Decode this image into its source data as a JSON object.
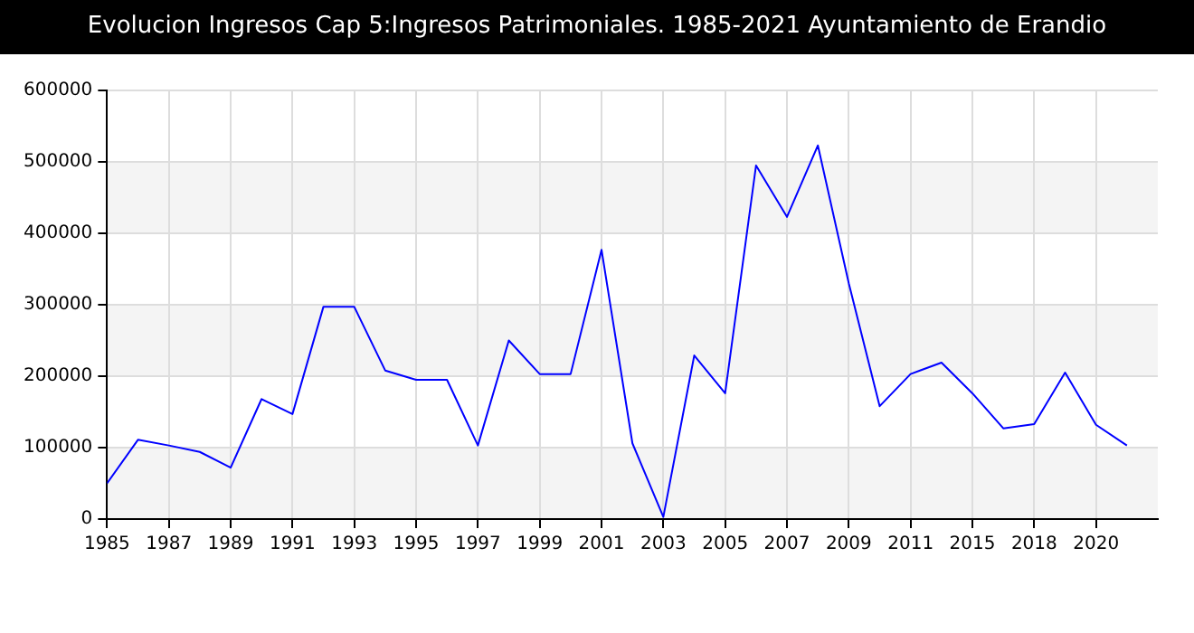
{
  "chart_data": {
    "type": "line",
    "title": "Evolucion Ingresos Cap 5:Ingresos Patrimoniales. 1985-2021 Ayuntamiento de Erandio",
    "categories": [
      "1985",
      null,
      "1987",
      null,
      "1989",
      null,
      "1991",
      null,
      "1993",
      null,
      "1995",
      null,
      "1997",
      null,
      "1999",
      null,
      "2001",
      null,
      "2003",
      null,
      "2005",
      null,
      "2007",
      null,
      "2009",
      null,
      "2011",
      null,
      "2015",
      null,
      "2018",
      null,
      "2020",
      null
    ],
    "series": [
      {
        "color": "#0000ff",
        "values": [
          50000,
          111000,
          103000,
          94000,
          72000,
          168000,
          147000,
          297000,
          297000,
          208000,
          195000,
          195000,
          103000,
          250000,
          203000,
          203000,
          377000,
          106000,
          3000,
          229000,
          176000,
          495000,
          423000,
          523000,
          330000,
          158000,
          203000,
          219000,
          176000,
          127000,
          133000,
          205000,
          132000,
          103000
        ]
      }
    ],
    "ylim": [
      0,
      600000
    ],
    "yticks": [
      0,
      100000,
      200000,
      300000,
      400000,
      500000,
      600000
    ],
    "grid": true,
    "legend": false,
    "marker": "none",
    "line_style": "solid"
  }
}
